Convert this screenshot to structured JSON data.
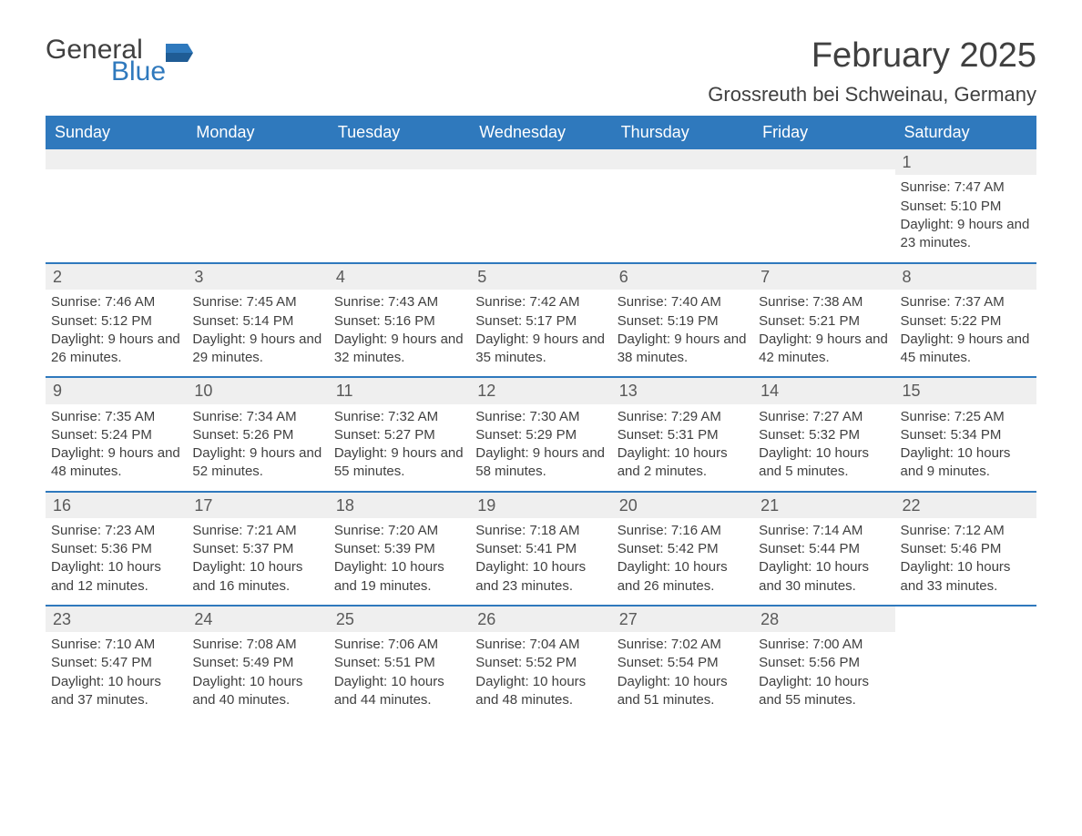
{
  "logo": {
    "general": "General",
    "blue": "Blue"
  },
  "title": "February 2025",
  "location": "Grossreuth bei Schweinau, Germany",
  "colors": {
    "header_bg": "#2f79bd",
    "header_text": "#ffffff",
    "rule": "#2f79bd",
    "daynum_bg": "#efefef",
    "text": "#404040",
    "background": "#ffffff"
  },
  "fonts": {
    "title_size": 38,
    "location_size": 22,
    "dayhead_size": 18,
    "daynum_size": 18,
    "body_size": 15
  },
  "day_names": [
    "Sunday",
    "Monday",
    "Tuesday",
    "Wednesday",
    "Thursday",
    "Friday",
    "Saturday"
  ],
  "weeks": [
    [
      null,
      null,
      null,
      null,
      null,
      null,
      {
        "d": "1",
        "sunrise": "7:47 AM",
        "sunset": "5:10 PM",
        "daylight": "9 hours and 23 minutes."
      }
    ],
    [
      {
        "d": "2",
        "sunrise": "7:46 AM",
        "sunset": "5:12 PM",
        "daylight": "9 hours and 26 minutes."
      },
      {
        "d": "3",
        "sunrise": "7:45 AM",
        "sunset": "5:14 PM",
        "daylight": "9 hours and 29 minutes."
      },
      {
        "d": "4",
        "sunrise": "7:43 AM",
        "sunset": "5:16 PM",
        "daylight": "9 hours and 32 minutes."
      },
      {
        "d": "5",
        "sunrise": "7:42 AM",
        "sunset": "5:17 PM",
        "daylight": "9 hours and 35 minutes."
      },
      {
        "d": "6",
        "sunrise": "7:40 AM",
        "sunset": "5:19 PM",
        "daylight": "9 hours and 38 minutes."
      },
      {
        "d": "7",
        "sunrise": "7:38 AM",
        "sunset": "5:21 PM",
        "daylight": "9 hours and 42 minutes."
      },
      {
        "d": "8",
        "sunrise": "7:37 AM",
        "sunset": "5:22 PM",
        "daylight": "9 hours and 45 minutes."
      }
    ],
    [
      {
        "d": "9",
        "sunrise": "7:35 AM",
        "sunset": "5:24 PM",
        "daylight": "9 hours and 48 minutes."
      },
      {
        "d": "10",
        "sunrise": "7:34 AM",
        "sunset": "5:26 PM",
        "daylight": "9 hours and 52 minutes."
      },
      {
        "d": "11",
        "sunrise": "7:32 AM",
        "sunset": "5:27 PM",
        "daylight": "9 hours and 55 minutes."
      },
      {
        "d": "12",
        "sunrise": "7:30 AM",
        "sunset": "5:29 PM",
        "daylight": "9 hours and 58 minutes."
      },
      {
        "d": "13",
        "sunrise": "7:29 AM",
        "sunset": "5:31 PM",
        "daylight": "10 hours and 2 minutes."
      },
      {
        "d": "14",
        "sunrise": "7:27 AM",
        "sunset": "5:32 PM",
        "daylight": "10 hours and 5 minutes."
      },
      {
        "d": "15",
        "sunrise": "7:25 AM",
        "sunset": "5:34 PM",
        "daylight": "10 hours and 9 minutes."
      }
    ],
    [
      {
        "d": "16",
        "sunrise": "7:23 AM",
        "sunset": "5:36 PM",
        "daylight": "10 hours and 12 minutes."
      },
      {
        "d": "17",
        "sunrise": "7:21 AM",
        "sunset": "5:37 PM",
        "daylight": "10 hours and 16 minutes."
      },
      {
        "d": "18",
        "sunrise": "7:20 AM",
        "sunset": "5:39 PM",
        "daylight": "10 hours and 19 minutes."
      },
      {
        "d": "19",
        "sunrise": "7:18 AM",
        "sunset": "5:41 PM",
        "daylight": "10 hours and 23 minutes."
      },
      {
        "d": "20",
        "sunrise": "7:16 AM",
        "sunset": "5:42 PM",
        "daylight": "10 hours and 26 minutes."
      },
      {
        "d": "21",
        "sunrise": "7:14 AM",
        "sunset": "5:44 PM",
        "daylight": "10 hours and 30 minutes."
      },
      {
        "d": "22",
        "sunrise": "7:12 AM",
        "sunset": "5:46 PM",
        "daylight": "10 hours and 33 minutes."
      }
    ],
    [
      {
        "d": "23",
        "sunrise": "7:10 AM",
        "sunset": "5:47 PM",
        "daylight": "10 hours and 37 minutes."
      },
      {
        "d": "24",
        "sunrise": "7:08 AM",
        "sunset": "5:49 PM",
        "daylight": "10 hours and 40 minutes."
      },
      {
        "d": "25",
        "sunrise": "7:06 AM",
        "sunset": "5:51 PM",
        "daylight": "10 hours and 44 minutes."
      },
      {
        "d": "26",
        "sunrise": "7:04 AM",
        "sunset": "5:52 PM",
        "daylight": "10 hours and 48 minutes."
      },
      {
        "d": "27",
        "sunrise": "7:02 AM",
        "sunset": "5:54 PM",
        "daylight": "10 hours and 51 minutes."
      },
      {
        "d": "28",
        "sunrise": "7:00 AM",
        "sunset": "5:56 PM",
        "daylight": "10 hours and 55 minutes."
      },
      null
    ]
  ],
  "labels": {
    "sunrise_prefix": "Sunrise: ",
    "sunset_prefix": "Sunset: ",
    "daylight_prefix": "Daylight: "
  }
}
